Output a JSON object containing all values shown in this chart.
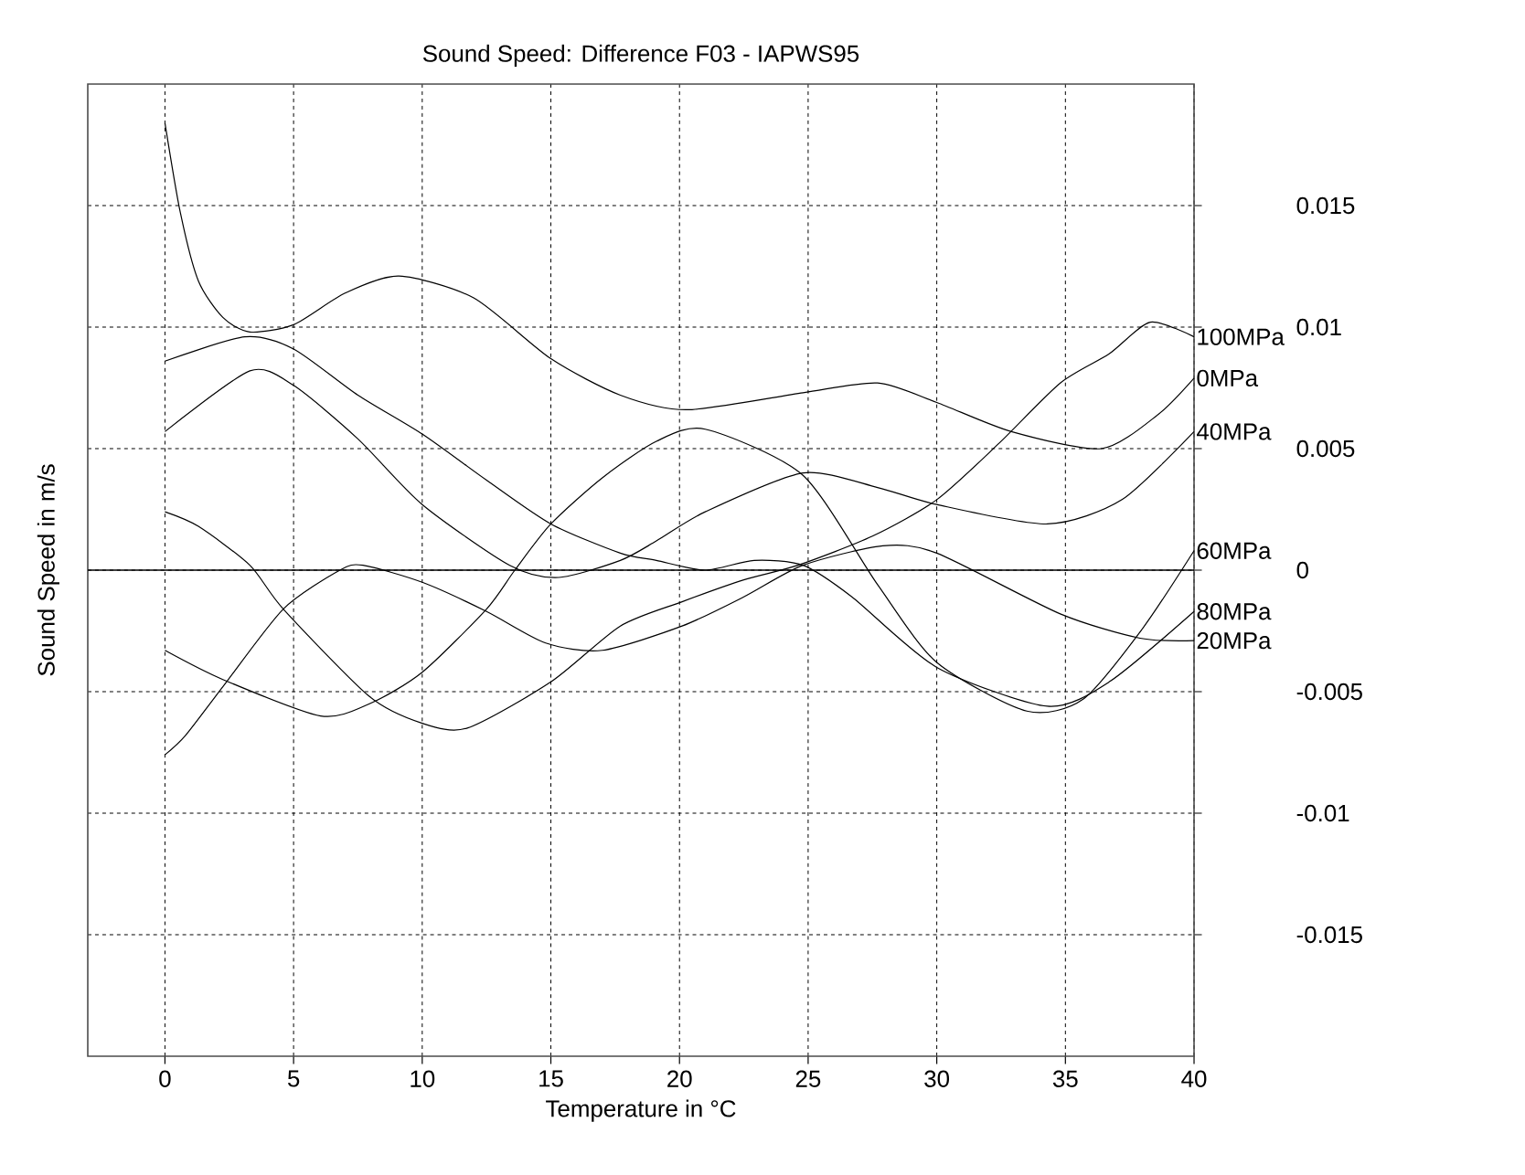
{
  "chart_data": {
    "type": "line",
    "title": "Sound Speed: Difference F03 - IAPWS95",
    "xlabel": "Temperature in °C",
    "ylabel": "Sound Speed in m/s",
    "xlim": [
      -3,
      40
    ],
    "ylim": [
      -0.02,
      0.02
    ],
    "xticks": [
      0,
      5,
      10,
      15,
      20,
      25,
      30,
      35,
      40
    ],
    "yticks": [
      -0.015,
      -0.01,
      -0.005,
      0,
      0.005,
      0.01,
      0.015
    ],
    "grid": true,
    "marker": "none",
    "line_style": "solid",
    "ref_lines": [
      {
        "axis": "y",
        "value": 0,
        "color": "#000000"
      }
    ],
    "series": [
      {
        "name": "100MPa",
        "color": "#000000",
        "x": [
          0,
          1.3,
          3.3,
          4.6,
          7.95,
          10,
          11.75,
          15,
          17.7,
          20.1,
          22.5,
          24.6,
          27.5,
          30,
          32.4,
          34.8,
          36.7,
          38.3,
          40
        ],
        "values": [
          0.0024,
          0.0018,
          0.0002,
          -0.0016,
          -0.0052,
          -0.0063,
          -0.0065,
          -0.0046,
          -0.0023,
          -0.0013,
          -0.0004,
          0.0002,
          0.0014,
          0.0029,
          0.0052,
          0.0077,
          0.0089,
          0.0102,
          0.0096
        ]
      },
      {
        "name": "0MPa",
        "color": "#000000",
        "x": [
          0,
          0.6,
          1.3,
          2.25,
          3.3,
          5,
          7,
          9.1,
          12,
          15,
          17.7,
          20.3,
          24.8,
          27.7,
          30,
          32.9,
          36.4,
          38.6,
          40
        ],
        "values": [
          0.0184,
          0.0147,
          0.0119,
          0.0104,
          0.0098,
          0.0101,
          0.0114,
          0.0121,
          0.0112,
          0.0087,
          0.0072,
          0.0066,
          0.0073,
          0.0077,
          0.0069,
          0.0057,
          0.005,
          0.0064,
          0.0079
        ]
      },
      {
        "name": "40MPa",
        "color": "#000000",
        "x": [
          0,
          3.3,
          5,
          7.5,
          10,
          13.4,
          15.3,
          17.7,
          19.1,
          21,
          24.8,
          27.7,
          30,
          34.3,
          37.2,
          40
        ],
        "values": [
          0.0057,
          0.0082,
          0.0076,
          0.0054,
          0.0027,
          0.0002,
          -0.0003,
          0.0004,
          0.0012,
          0.0024,
          0.004,
          0.0034,
          0.0027,
          0.0019,
          0.0029,
          0.0057
        ]
      },
      {
        "name": "60MPa",
        "color": "#000000",
        "x": [
          0,
          2.25,
          6.05,
          7.95,
          10,
          12.5,
          13.6,
          15,
          17,
          19.1,
          21,
          24.8,
          27.7,
          30,
          33.5,
          35.7,
          38,
          40
        ],
        "values": [
          -0.0033,
          -0.0045,
          -0.006,
          -0.0055,
          -0.0042,
          -0.0016,
          0,
          0.0019,
          0.0038,
          0.0053,
          0.0058,
          0.0039,
          -0.0006,
          -0.0038,
          -0.0058,
          -0.0053,
          -0.0024,
          0.0008
        ]
      },
      {
        "name": "80MPa",
        "color": "#000000",
        "x": [
          0,
          3.1,
          5,
          7.5,
          10,
          12.5,
          15,
          17.7,
          19.1,
          21,
          22.9,
          24.8,
          26.7,
          30,
          34.3,
          36.7,
          40
        ],
        "values": [
          0.0086,
          0.0096,
          0.0091,
          0.0072,
          0.0056,
          0.0037,
          0.0019,
          0.0007,
          0.0004,
          0,
          0.0004,
          0.0002,
          -0.0011,
          -0.004,
          -0.0056,
          -0.0046,
          -0.0017
        ]
      },
      {
        "name": "20MPa",
        "color": "#000000",
        "x": [
          0,
          0.8,
          2.25,
          4.6,
          6.8,
          7.7,
          10,
          12.5,
          14.8,
          17,
          20.1,
          22.5,
          24.8,
          27.9,
          30,
          34.8,
          37.9,
          40
        ],
        "values": [
          -0.0076,
          -0.0068,
          -0.0048,
          -0.0016,
          0,
          0.0002,
          -0.0005,
          -0.0017,
          -0.003,
          -0.0033,
          -0.0023,
          -0.0011,
          0.0002,
          0.001,
          0.0007,
          -0.0018,
          -0.0028,
          -0.0029
        ]
      }
    ]
  }
}
